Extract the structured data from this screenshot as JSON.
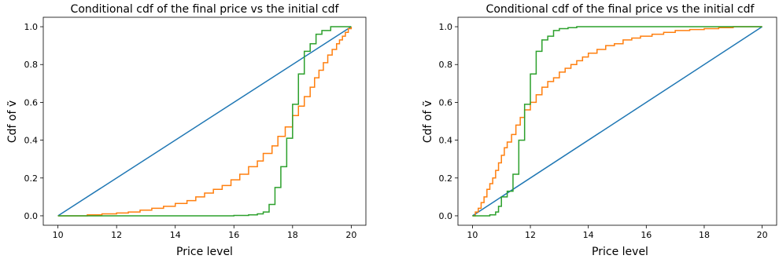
{
  "colors": {
    "series_1": "#1f77b4",
    "series_2": "#ff7f0e",
    "series_3": "#2ca02c",
    "axis": "#000000",
    "background": "#ffffff"
  },
  "chart_data": [
    {
      "type": "line",
      "title": "Conditional cdf of the final price vs the initial cdf",
      "xlabel": "Price level",
      "ylabel": "Cdf of ṽ",
      "xlim": [
        9.5,
        20.5
      ],
      "ylim": [
        -0.05,
        1.05
      ],
      "xticks": [
        10,
        12,
        14,
        16,
        18,
        20
      ],
      "yticks": [
        0.0,
        0.2,
        0.4,
        0.6,
        0.8,
        1.0
      ],
      "xtick_labels": [
        "10",
        "12",
        "14",
        "16",
        "18",
        "20"
      ],
      "ytick_labels": [
        "0.0",
        "0.2",
        "0.4",
        "0.6",
        "0.8",
        "1.0"
      ],
      "grid": false,
      "legend": "none",
      "series": [
        {
          "step": false,
          "x": [
            10,
            20
          ],
          "y": [
            0.0,
            1.0
          ]
        },
        {
          "step": true,
          "x": [
            10.0,
            11.0,
            11.5,
            12.0,
            12.4,
            12.8,
            13.2,
            13.6,
            14.0,
            14.4,
            14.7,
            15.0,
            15.3,
            15.6,
            15.9,
            16.2,
            16.5,
            16.8,
            17.0,
            17.3,
            17.5,
            17.75,
            18.0,
            18.2,
            18.4,
            18.6,
            18.75,
            18.9,
            19.05,
            19.2,
            19.35,
            19.5,
            19.6,
            19.7,
            19.8,
            19.9,
            20.0
          ],
          "y": [
            0.0,
            0.005,
            0.01,
            0.015,
            0.02,
            0.03,
            0.04,
            0.05,
            0.065,
            0.08,
            0.1,
            0.12,
            0.14,
            0.16,
            0.19,
            0.22,
            0.26,
            0.29,
            0.33,
            0.37,
            0.42,
            0.47,
            0.53,
            0.58,
            0.63,
            0.68,
            0.73,
            0.77,
            0.81,
            0.85,
            0.88,
            0.91,
            0.93,
            0.95,
            0.97,
            0.99,
            1.0
          ]
        },
        {
          "step": true,
          "x": [
            10.0,
            16.0,
            16.5,
            16.8,
            17.0,
            17.2,
            17.4,
            17.6,
            17.8,
            18.0,
            18.2,
            18.4,
            18.6,
            18.8,
            19.0,
            19.3,
            20.0
          ],
          "y": [
            0.0,
            0.002,
            0.005,
            0.01,
            0.02,
            0.06,
            0.15,
            0.26,
            0.41,
            0.59,
            0.75,
            0.87,
            0.91,
            0.96,
            0.98,
            1.0,
            1.0
          ]
        }
      ]
    },
    {
      "type": "line",
      "title": "Conditional cdf of the final price vs the initial cdf",
      "xlabel": "Price level",
      "ylabel": "Cdf of ṽ",
      "xlim": [
        9.5,
        20.5
      ],
      "ylim": [
        -0.05,
        1.05
      ],
      "xticks": [
        10,
        12,
        14,
        16,
        18,
        20
      ],
      "yticks": [
        0.0,
        0.2,
        0.4,
        0.6,
        0.8,
        1.0
      ],
      "xtick_labels": [
        "10",
        "12",
        "14",
        "16",
        "18",
        "20"
      ],
      "ytick_labels": [
        "0.0",
        "0.2",
        "0.4",
        "0.6",
        "0.8",
        "1.0"
      ],
      "grid": false,
      "legend": "none",
      "series": [
        {
          "step": false,
          "x": [
            10,
            20
          ],
          "y": [
            0.0,
            1.0
          ]
        },
        {
          "step": true,
          "x": [
            10.0,
            10.1,
            10.2,
            10.3,
            10.4,
            10.5,
            10.6,
            10.7,
            10.8,
            10.9,
            11.0,
            11.1,
            11.2,
            11.35,
            11.5,
            11.65,
            11.8,
            12.0,
            12.2,
            12.4,
            12.6,
            12.8,
            13.0,
            13.2,
            13.4,
            13.6,
            13.8,
            14.0,
            14.3,
            14.6,
            14.9,
            15.2,
            15.5,
            15.8,
            16.2,
            16.6,
            17.0,
            17.5,
            18.0,
            18.5,
            19.0,
            20.0
          ],
          "y": [
            0.0,
            0.02,
            0.04,
            0.07,
            0.1,
            0.14,
            0.17,
            0.2,
            0.24,
            0.28,
            0.32,
            0.36,
            0.39,
            0.43,
            0.48,
            0.52,
            0.56,
            0.6,
            0.64,
            0.68,
            0.71,
            0.73,
            0.76,
            0.78,
            0.8,
            0.82,
            0.84,
            0.86,
            0.88,
            0.9,
            0.91,
            0.93,
            0.94,
            0.95,
            0.96,
            0.97,
            0.98,
            0.985,
            0.99,
            0.995,
            1.0,
            1.0
          ]
        },
        {
          "step": true,
          "x": [
            10.0,
            10.6,
            10.8,
            10.9,
            11.0,
            11.2,
            11.4,
            11.6,
            11.8,
            12.0,
            12.2,
            12.4,
            12.6,
            12.8,
            13.0,
            13.3,
            13.6,
            20.0
          ],
          "y": [
            0.0,
            0.005,
            0.02,
            0.05,
            0.1,
            0.13,
            0.22,
            0.4,
            0.59,
            0.75,
            0.87,
            0.93,
            0.95,
            0.98,
            0.99,
            0.995,
            1.0,
            1.0
          ]
        }
      ]
    }
  ]
}
